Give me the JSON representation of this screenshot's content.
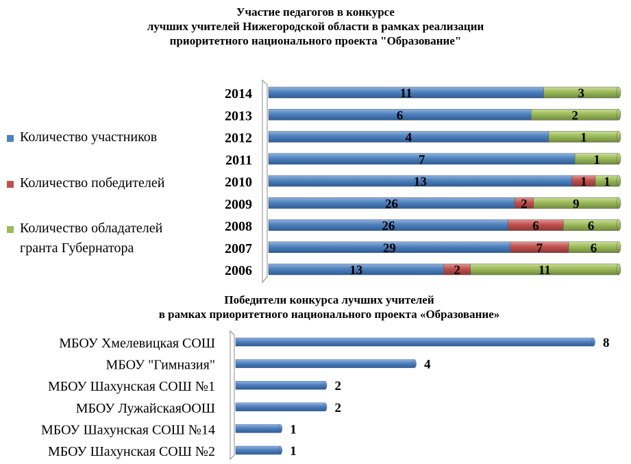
{
  "colors": {
    "participants": "#4F81BD",
    "winners": "#C0504D",
    "grant": "#9BBB59"
  },
  "chart_data": [
    {
      "type": "bar",
      "orientation": "horizontal",
      "stacked": "percent",
      "title_lines": [
        "Участие педагогов в конкурсе",
        "лучших  учителей Нижегородской области  в рамках реализации",
        "приоритетного национального проекта \"Образование\""
      ],
      "categories": [
        "2014",
        "2013",
        "2012",
        "2011",
        "2010",
        "2009",
        "2008",
        "2007",
        "2006"
      ],
      "series": [
        {
          "name": "Количество участников",
          "values": [
            11,
            6,
            4,
            7,
            13,
            26,
            26,
            29,
            13
          ]
        },
        {
          "name": "Количество победителей",
          "values": [
            0,
            0,
            0,
            0,
            1,
            2,
            6,
            7,
            2
          ]
        },
        {
          "name": "Количество обладателей гранта Губернатора",
          "values": [
            3,
            2,
            1,
            1,
            1,
            9,
            6,
            6,
            11
          ]
        }
      ],
      "legend": "left",
      "legend_lines": [
        [
          "Количество участников"
        ],
        [
          "Количество победителей"
        ],
        [
          "Количество обладателей",
          "гранта Губернатора"
        ]
      ]
    },
    {
      "type": "bar",
      "orientation": "horizontal",
      "title_lines": [
        "Победители конкурса лучших учителей",
        "в рамках приоритетного национального проекта «Образование»"
      ],
      "categories": [
        "МБОУ Хмелевицкая СОШ",
        "МБОУ \"Гимназия\"",
        "МБОУ Шахунская СОШ №1",
        "МБОУ ЛужайскаяООШ",
        "МБОУ Шахунская СОШ №14",
        "МБОУ Шахунская СОШ №2"
      ],
      "values": [
        8,
        4,
        2,
        2,
        1,
        1
      ],
      "xlim": [
        0,
        8
      ]
    }
  ]
}
